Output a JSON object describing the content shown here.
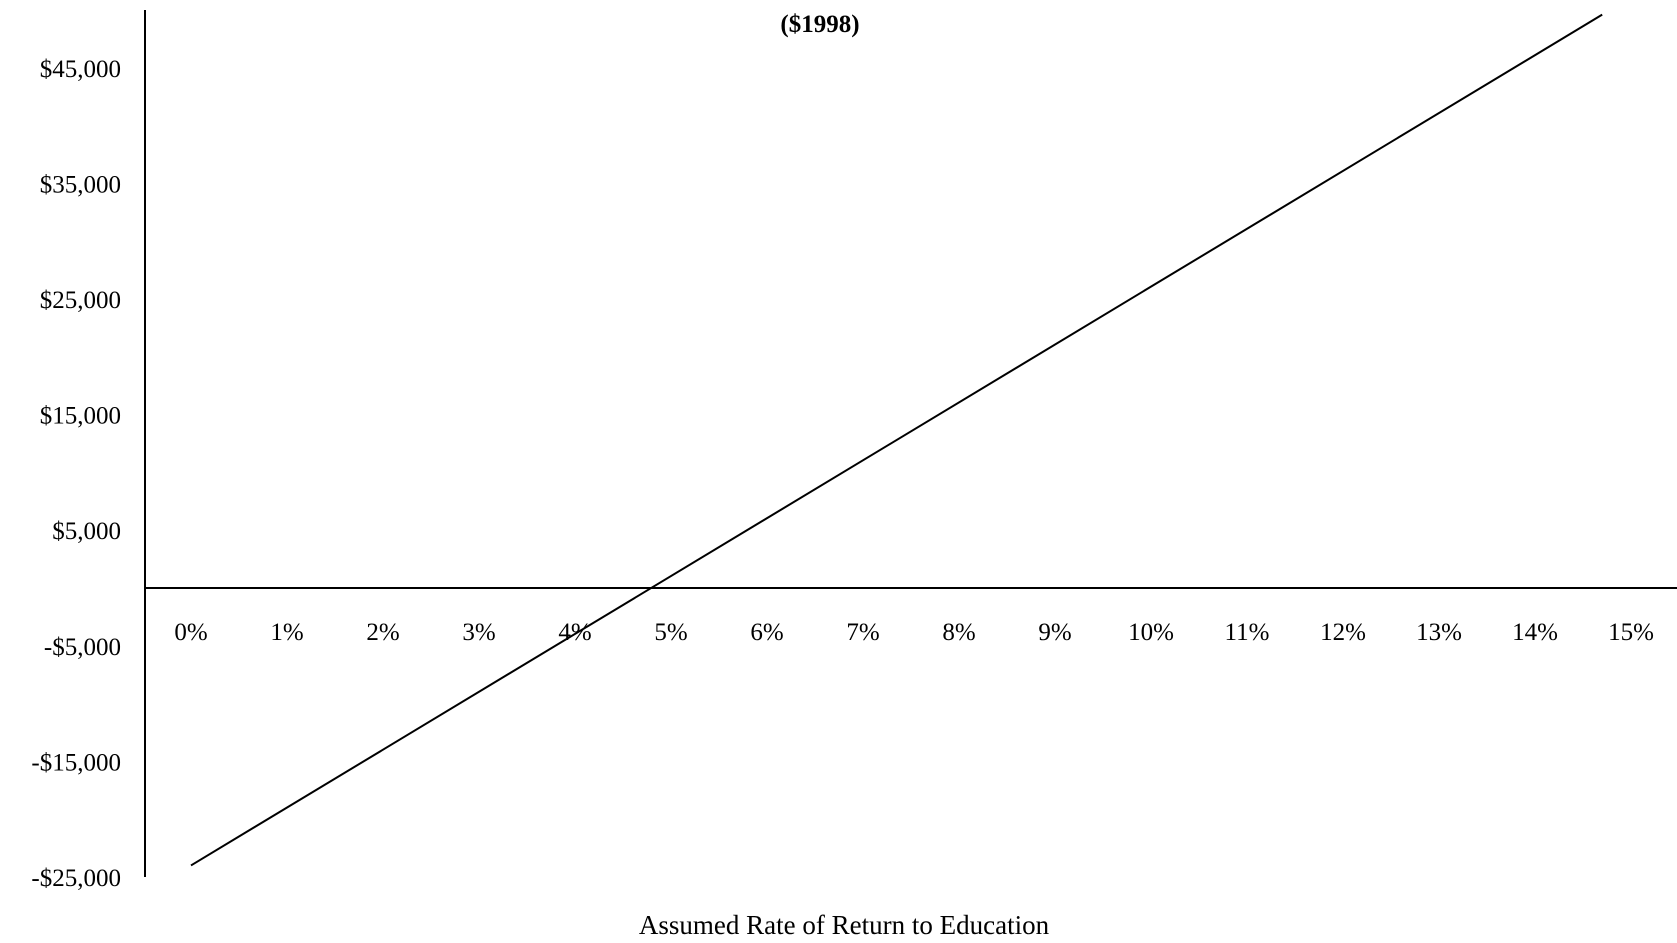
{
  "chart_data": {
    "type": "line",
    "title": "($1998)",
    "xlabel": "Assumed Rate of Return to Education",
    "ylabel": "",
    "x_tick_labels": [
      "0%",
      "1%",
      "2%",
      "3%",
      "4%",
      "5%",
      "6%",
      "7%",
      "8%",
      "9%",
      "10%",
      "11%",
      "12%",
      "13%",
      "14%",
      "15%"
    ],
    "y_tick_labels": [
      "$45,000",
      "$35,000",
      "$25,000",
      "$15,000",
      "$5,000",
      "-$5,000",
      "-$15,000",
      "-$25,000"
    ],
    "y_tick_values": [
      45000,
      35000,
      25000,
      15000,
      5000,
      -5000,
      -15000,
      -25000
    ],
    "xlim": [
      0,
      15.6
    ],
    "ylim": [
      -25000,
      50000
    ],
    "x_unit": "%",
    "grid": false,
    "legend": "none",
    "series": [
      {
        "x": [
          0,
          14.7
        ],
        "y": [
          -24000,
          49600
        ]
      }
    ],
    "colors": {
      "line": "#000000",
      "axis": "#000000"
    }
  }
}
